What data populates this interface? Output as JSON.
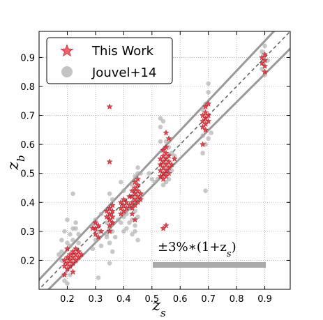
{
  "chart_data": {
    "type": "scatter",
    "xlabel": "z_s",
    "ylabel": "z_b",
    "xlim": [
      0.1,
      0.99
    ],
    "ylim": [
      0.1,
      0.99
    ],
    "x_ticks": [
      "0.2",
      "0.3",
      "0.4",
      "0.5",
      "0.6",
      "0.7",
      "0.8",
      "0.9"
    ],
    "y_ticks": [
      "0.2",
      "0.3",
      "0.4",
      "0.5",
      "0.6",
      "0.7",
      "0.8",
      "0.9"
    ],
    "grid": true,
    "legend_position": "top-left",
    "annotation": "±3%∗(1+zs)",
    "reference_lines": {
      "identity": "z_b = z_s (dashed)",
      "bounds": "z_b = z_s ± 0.03(1+z_s) (solid gray)"
    },
    "series": [
      {
        "name": "This Work",
        "marker": "star",
        "color": "#e8202a",
        "points": [
          [
            0.19,
            0.18
          ],
          [
            0.19,
            0.2
          ],
          [
            0.2,
            0.17
          ],
          [
            0.2,
            0.19
          ],
          [
            0.2,
            0.21
          ],
          [
            0.21,
            0.18
          ],
          [
            0.21,
            0.2
          ],
          [
            0.21,
            0.22
          ],
          [
            0.22,
            0.19
          ],
          [
            0.22,
            0.21
          ],
          [
            0.22,
            0.23
          ],
          [
            0.23,
            0.2
          ],
          [
            0.23,
            0.22
          ],
          [
            0.23,
            0.24
          ],
          [
            0.24,
            0.21
          ],
          [
            0.24,
            0.23
          ],
          [
            0.25,
            0.22
          ],
          [
            0.2,
            0.24
          ],
          [
            0.19,
            0.15
          ],
          [
            0.22,
            0.16
          ],
          [
            0.3,
            0.29
          ],
          [
            0.3,
            0.31
          ],
          [
            0.31,
            0.32
          ],
          [
            0.31,
            0.28
          ],
          [
            0.32,
            0.3
          ],
          [
            0.3,
            0.33
          ],
          [
            0.29,
            0.31
          ],
          [
            0.35,
            0.32
          ],
          [
            0.35,
            0.34
          ],
          [
            0.35,
            0.36
          ],
          [
            0.35,
            0.38
          ],
          [
            0.36,
            0.33
          ],
          [
            0.36,
            0.35
          ],
          [
            0.36,
            0.37
          ],
          [
            0.34,
            0.35
          ],
          [
            0.35,
            0.3
          ],
          [
            0.35,
            0.73
          ],
          [
            0.35,
            0.54
          ],
          [
            0.36,
            0.39
          ],
          [
            0.34,
            0.37
          ],
          [
            0.39,
            0.36
          ],
          [
            0.39,
            0.38
          ],
          [
            0.4,
            0.37
          ],
          [
            0.4,
            0.39
          ],
          [
            0.4,
            0.41
          ],
          [
            0.41,
            0.38
          ],
          [
            0.41,
            0.4
          ],
          [
            0.42,
            0.39
          ],
          [
            0.39,
            0.4
          ],
          [
            0.43,
            0.38
          ],
          [
            0.43,
            0.4
          ],
          [
            0.43,
            0.42
          ],
          [
            0.43,
            0.44
          ],
          [
            0.44,
            0.39
          ],
          [
            0.44,
            0.41
          ],
          [
            0.44,
            0.43
          ],
          [
            0.44,
            0.45
          ],
          [
            0.44,
            0.47
          ],
          [
            0.45,
            0.4
          ],
          [
            0.45,
            0.42
          ],
          [
            0.45,
            0.44
          ],
          [
            0.45,
            0.46
          ],
          [
            0.46,
            0.43
          ],
          [
            0.46,
            0.41
          ],
          [
            0.43,
            0.36
          ],
          [
            0.44,
            0.34
          ],
          [
            0.45,
            0.48
          ],
          [
            0.42,
            0.42
          ],
          [
            0.53,
            0.49
          ],
          [
            0.53,
            0.51
          ],
          [
            0.53,
            0.53
          ],
          [
            0.53,
            0.55
          ],
          [
            0.54,
            0.48
          ],
          [
            0.54,
            0.5
          ],
          [
            0.54,
            0.52
          ],
          [
            0.54,
            0.54
          ],
          [
            0.54,
            0.56
          ],
          [
            0.54,
            0.58
          ],
          [
            0.55,
            0.49
          ],
          [
            0.55,
            0.51
          ],
          [
            0.55,
            0.53
          ],
          [
            0.55,
            0.55
          ],
          [
            0.55,
            0.57
          ],
          [
            0.55,
            0.59
          ],
          [
            0.56,
            0.5
          ],
          [
            0.56,
            0.52
          ],
          [
            0.56,
            0.54
          ],
          [
            0.56,
            0.56
          ],
          [
            0.57,
            0.53
          ],
          [
            0.58,
            0.55
          ],
          [
            0.54,
            0.31
          ],
          [
            0.55,
            0.32
          ],
          [
            0.55,
            0.64
          ],
          [
            0.56,
            0.62
          ],
          [
            0.68,
            0.66
          ],
          [
            0.68,
            0.68
          ],
          [
            0.68,
            0.7
          ],
          [
            0.69,
            0.65
          ],
          [
            0.69,
            0.67
          ],
          [
            0.69,
            0.69
          ],
          [
            0.69,
            0.71
          ],
          [
            0.7,
            0.68
          ],
          [
            0.7,
            0.7
          ],
          [
            0.69,
            0.73
          ],
          [
            0.68,
            0.6
          ],
          [
            0.7,
            0.74
          ],
          [
            0.89,
            0.88
          ],
          [
            0.89,
            0.9
          ],
          [
            0.9,
            0.87
          ],
          [
            0.9,
            0.89
          ],
          [
            0.9,
            0.91
          ],
          [
            0.9,
            0.85
          ]
        ]
      },
      {
        "name": "Jouvel+14",
        "marker": "circle",
        "color": "#aaaaaa",
        "points": [
          [
            0.18,
            0.23
          ],
          [
            0.18,
            0.27
          ],
          [
            0.19,
            0.3
          ],
          [
            0.2,
            0.26
          ],
          [
            0.21,
            0.29
          ],
          [
            0.22,
            0.31
          ],
          [
            0.23,
            0.33
          ],
          [
            0.21,
            0.25
          ],
          [
            0.22,
            0.27
          ],
          [
            0.24,
            0.29
          ],
          [
            0.2,
            0.34
          ],
          [
            0.19,
            0.13
          ],
          [
            0.2,
            0.12
          ],
          [
            0.21,
            0.15
          ],
          [
            0.22,
            0.43
          ],
          [
            0.23,
            0.31
          ],
          [
            0.24,
            0.26
          ],
          [
            0.18,
            0.2
          ],
          [
            0.17,
            0.22
          ],
          [
            0.29,
            0.32
          ],
          [
            0.3,
            0.34
          ],
          [
            0.31,
            0.3
          ],
          [
            0.32,
            0.36
          ],
          [
            0.3,
            0.27
          ],
          [
            0.31,
            0.14
          ],
          [
            0.32,
            0.25
          ],
          [
            0.29,
            0.24
          ],
          [
            0.34,
            0.29
          ],
          [
            0.35,
            0.31
          ],
          [
            0.36,
            0.3
          ],
          [
            0.34,
            0.28
          ],
          [
            0.35,
            0.26
          ],
          [
            0.36,
            0.41
          ],
          [
            0.35,
            0.43
          ],
          [
            0.37,
            0.28
          ],
          [
            0.34,
            0.33
          ],
          [
            0.35,
            0.19
          ],
          [
            0.36,
            0.23
          ],
          [
            0.36,
            0.33
          ],
          [
            0.38,
            0.34
          ],
          [
            0.39,
            0.33
          ],
          [
            0.4,
            0.35
          ],
          [
            0.41,
            0.36
          ],
          [
            0.4,
            0.44
          ],
          [
            0.39,
            0.47
          ],
          [
            0.41,
            0.31
          ],
          [
            0.42,
            0.33
          ],
          [
            0.4,
            0.3
          ],
          [
            0.43,
            0.46
          ],
          [
            0.44,
            0.49
          ],
          [
            0.45,
            0.5
          ],
          [
            0.44,
            0.37
          ],
          [
            0.43,
            0.34
          ],
          [
            0.45,
            0.35
          ],
          [
            0.44,
            0.32
          ],
          [
            0.43,
            0.29
          ],
          [
            0.45,
            0.27
          ],
          [
            0.44,
            0.3
          ],
          [
            0.46,
            0.5
          ],
          [
            0.45,
            0.52
          ],
          [
            0.49,
            0.5
          ],
          [
            0.5,
            0.48
          ],
          [
            0.51,
            0.47
          ],
          [
            0.52,
            0.48
          ],
          [
            0.53,
            0.61
          ],
          [
            0.53,
            0.66
          ],
          [
            0.54,
            0.68
          ],
          [
            0.54,
            0.46
          ],
          [
            0.55,
            0.47
          ],
          [
            0.56,
            0.48
          ],
          [
            0.53,
            0.69
          ],
          [
            0.55,
            0.61
          ],
          [
            0.57,
            0.51
          ],
          [
            0.57,
            0.57
          ],
          [
            0.58,
            0.56
          ],
          [
            0.56,
            0.59
          ],
          [
            0.68,
            0.63
          ],
          [
            0.68,
            0.72
          ],
          [
            0.69,
            0.74
          ],
          [
            0.69,
            0.44
          ],
          [
            0.7,
            0.62
          ],
          [
            0.7,
            0.78
          ],
          [
            0.7,
            0.81
          ],
          [
            0.69,
            0.6
          ],
          [
            0.71,
            0.64
          ],
          [
            0.68,
            0.57
          ],
          [
            0.89,
            0.86
          ],
          [
            0.89,
            0.92
          ],
          [
            0.9,
            0.94
          ],
          [
            0.9,
            0.84
          ],
          [
            0.91,
            0.89
          ]
        ]
      }
    ]
  }
}
